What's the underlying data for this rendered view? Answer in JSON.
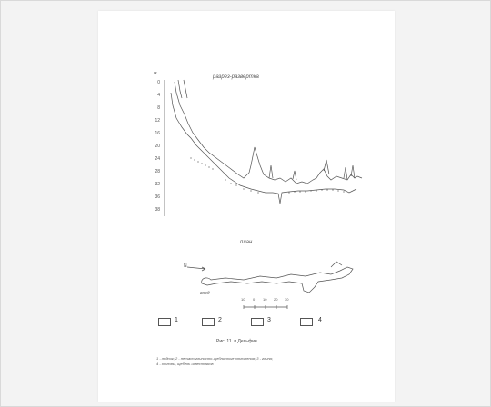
{
  "figure": {
    "profile_title": "разрез-развертка",
    "y_axis_unit": "м",
    "y_ticks": [
      "0",
      "4",
      "8",
      "12",
      "16",
      "20",
      "24",
      "28",
      "32",
      "36",
      "38"
    ],
    "plan_title": "план",
    "north_label": "N",
    "entrance_label": "вход",
    "scale_ticks": [
      "10",
      "0",
      "10",
      "20",
      "30"
    ],
    "legend": [
      {
        "num": "1"
      },
      {
        "num": "2"
      },
      {
        "num": "3"
      },
      {
        "num": "4"
      }
    ],
    "caption": "Рис. 11. п.Дельфин",
    "legend_note_line1": "1 - ледник; 2 - песчано-глинисто-щебнистые отложения; 3 - глина;",
    "legend_note_line2": "4 - отловы, щебень известняков"
  }
}
